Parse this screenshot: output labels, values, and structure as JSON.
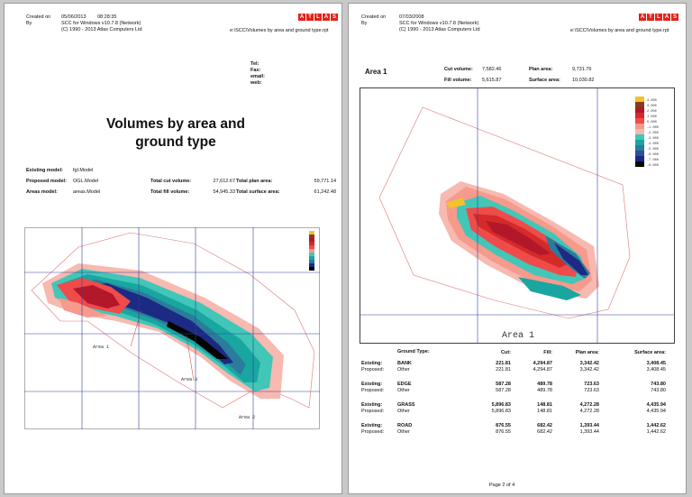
{
  "page1": {
    "created_on_label": "Created on",
    "created_on_date": "05/06/2013",
    "created_on_time": "08:28:35",
    "by_label": "By",
    "by_line1": "SCC for Windows v10.7.8 (Network)",
    "by_line2": "(C) 1990 - 2013 Atlas Computers Ltd",
    "logo_letters": [
      "A",
      "T",
      "L",
      "A",
      "S"
    ],
    "filepath": "e:\\SCC\\Volumes by area and ground type.rpt",
    "contact_labels": [
      "Tel:",
      "Fax:",
      "email:",
      "web:"
    ],
    "title_line1": "Volumes by area and",
    "title_line2": "ground type",
    "existing_model_label": "Existing model:",
    "existing_model_value": "fgl.Model",
    "proposed_model_label": "Proposed model:",
    "proposed_model_value": "OGL.Model",
    "areas_model_label": "Areas model:",
    "areas_model_value": "areas.Model",
    "total_cut_label": "Total cut volume:",
    "total_cut_value": "27,612.67",
    "total_fill_label": "Total fill volume:",
    "total_fill_value": "54,945.33",
    "total_plan_label": "Total plan area:",
    "total_plan_value": "59,771.14",
    "total_surface_label": "Total surface area:",
    "total_surface_value": "61,242.48",
    "map_labels": [
      "Area 1",
      "Area 3",
      "Area 2"
    ]
  },
  "page2": {
    "created_on_label": "Created on",
    "created_on_date": "07/03/2008",
    "by_label": "By",
    "by_line1": "SCC for Windows v10.7.8 (Network)",
    "by_line2": "(C) 1990 - 2013 Atlas Computers Ltd",
    "logo_letters": [
      "A",
      "T",
      "L",
      "A",
      "S"
    ],
    "filepath": "e:\\SCC\\Volumes by area and ground type.rpt",
    "area_title": "Area 1",
    "cut_label": "Cut volume:",
    "cut_value": "7,582.46",
    "fill_label": "Fill volume:",
    "fill_value": "5,615.87",
    "plan_label": "Plan area:",
    "plan_value": "9,731.76",
    "surface_label": "Surface area:",
    "surface_value": "10,030.82",
    "map_label": "Area 1",
    "legend_values": [
      "4.000",
      "3.000",
      "2.000",
      "1.000",
      "0.000",
      "-1.000",
      "-2.000",
      "-3.000",
      "-4.000",
      "-5.000",
      "-6.000",
      "-7.000",
      "-8.000"
    ],
    "legend_colors": [
      "#f2c12e",
      "#8b3a1f",
      "#b3172a",
      "#d42a2a",
      "#ef4b4b",
      "#f59a8c",
      "#f7b9b0",
      "#42c6b8",
      "#19a6a0",
      "#2a7c9a",
      "#2e4fa0",
      "#1c2a84",
      "#050505"
    ],
    "table_headers": {
      "ground_type": "Ground Type:",
      "cut": "Cut:",
      "fill": "Fill:",
      "plan": "Plan area:",
      "surface": "Surface area:"
    },
    "groups": [
      {
        "existing_label": "Existing:",
        "existing_name": "BANK",
        "existing_values": [
          "221.81",
          "4,294.87",
          "3,342.42",
          "3,408.45"
        ],
        "proposed_label": "Proposed:",
        "proposed_name": "Other",
        "proposed_values": [
          "221.81",
          "4,294.87",
          "3,342.42",
          "3,408.45"
        ]
      },
      {
        "existing_label": "Existing:",
        "existing_name": "EDGE",
        "existing_values": [
          "587.28",
          "489.78",
          "723.63",
          "743.80"
        ],
        "proposed_label": "Proposed:",
        "proposed_name": "Other",
        "proposed_values": [
          "587.28",
          "489.78",
          "723.63",
          "743.80"
        ]
      },
      {
        "existing_label": "Existing:",
        "existing_name": "GRASS",
        "existing_values": [
          "5,896.83",
          "148.81",
          "4,272.28",
          "4,435.94"
        ],
        "proposed_label": "Proposed:",
        "proposed_name": "Other",
        "proposed_values": [
          "5,896.83",
          "148.81",
          "4,272.28",
          "4,435.94"
        ]
      },
      {
        "existing_label": "Existing:",
        "existing_name": "ROAD",
        "existing_values": [
          "876.55",
          "682.42",
          "1,393.44",
          "1,442.62"
        ],
        "proposed_label": "Proposed:",
        "proposed_name": "Other",
        "proposed_values": [
          "876.55",
          "682.42",
          "1,393.44",
          "1,442.62"
        ]
      }
    ],
    "page_number": "Page 2 of 4"
  }
}
